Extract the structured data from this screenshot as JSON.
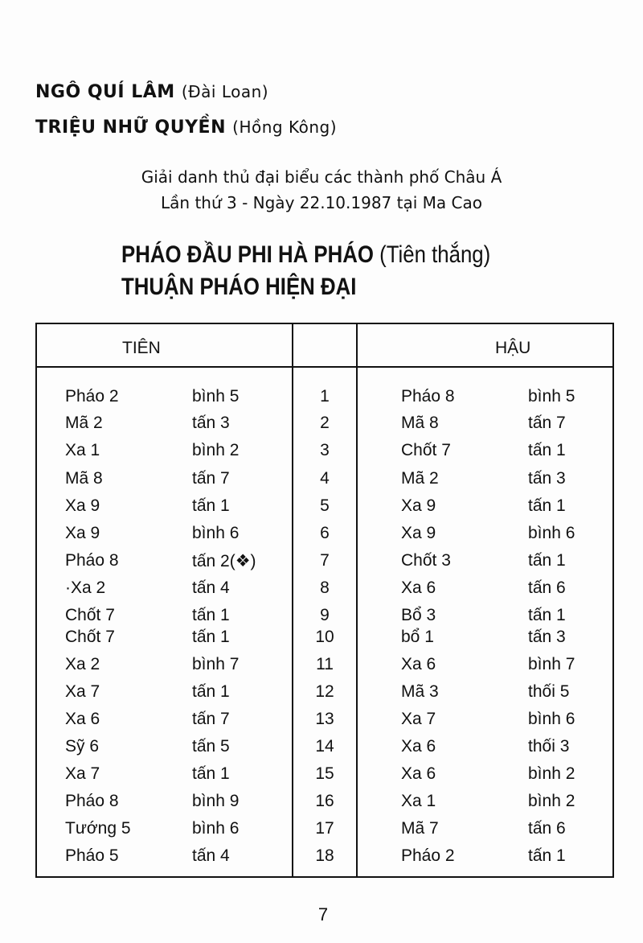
{
  "players": [
    {
      "name": "NGÔ QUÍ LÂM",
      "country": "(Đài Loan)"
    },
    {
      "name": "TRIỆU NHỮ QUYỀN",
      "country": "(Hồng Kông)"
    }
  ],
  "event": {
    "line1": "Giải danh thủ đại biểu các thành phố Châu Á",
    "line2": "Lần thứ 3 - Ngày 22.10.1987 tại Ma Cao"
  },
  "opening": {
    "title1": "PHÁO ĐẦU PHI HÀ PHÁO",
    "result": "(Tiên thắng)",
    "title2": "THUẬN PHÁO HIỆN ĐẠI"
  },
  "table": {
    "headers": {
      "tien": "TIÊN",
      "number": "",
      "hau": "HẬU"
    },
    "rows": [
      {
        "tien_piece": "Pháo 2",
        "tien_move": "bình 5",
        "n": "1",
        "hau_piece": "Pháo 8",
        "hau_move": "bình 5"
      },
      {
        "tien_piece": "Mã 2",
        "tien_move": "tấn 3",
        "n": "2",
        "hau_piece": "Mã 8",
        "hau_move": "tấn 7"
      },
      {
        "tien_piece": "Xa 1",
        "tien_move": "bình 2",
        "n": "3",
        "hau_piece": "Chốt 7",
        "hau_move": "tấn 1"
      },
      {
        "tien_piece": "Mã 8",
        "tien_move": "tấn 7",
        "n": "4",
        "hau_piece": "Mã 2",
        "hau_move": "tấn 3"
      },
      {
        "tien_piece": "Xa 9",
        "tien_move": "tấn 1",
        "n": "5",
        "hau_piece": "Xa 9",
        "hau_move": "tấn 1"
      },
      {
        "tien_piece": "Xa 9",
        "tien_move": "bình 6",
        "n": "6",
        "hau_piece": "Xa 9",
        "hau_move": "bình 6"
      },
      {
        "tien_piece": "Pháo 8",
        "tien_move": "tấn 2(❖)",
        "n": "7",
        "hau_piece": "Chốt 3",
        "hau_move": "tấn 1"
      },
      {
        "tien_piece": "·Xa 2",
        "tien_move": "tấn 4",
        "n": "8",
        "hau_piece": "Xa 6",
        "hau_move": "tấn 6"
      },
      {
        "tien_piece": "Chốt 7",
        "tien_move": "tấn 1",
        "n": "9",
        "hau_piece": "Bổ 3",
        "hau_move": "tấn 1"
      },
      {
        "tien_piece": "Chốt 7",
        "tien_move": "tấn 1",
        "n": "10",
        "hau_piece": "bổ 1",
        "hau_move": "tấn 3"
      },
      {
        "tien_piece": "Xa 2",
        "tien_move": "bình 7",
        "n": "11",
        "hau_piece": "Xa 6",
        "hau_move": "bình 7"
      },
      {
        "tien_piece": "Xa 7",
        "tien_move": "tấn 1",
        "n": "12",
        "hau_piece": "Mã 3",
        "hau_move": "thối 5"
      },
      {
        "tien_piece": "Xa 6",
        "tien_move": "tấn 7",
        "n": "13",
        "hau_piece": "Xa 7",
        "hau_move": "bình 6"
      },
      {
        "tien_piece": "Sỹ 6",
        "tien_move": "tấn 5",
        "n": "14",
        "hau_piece": "Xa 6",
        "hau_move": "thối 3"
      },
      {
        "tien_piece": "Xa 7",
        "tien_move": "tấn 1",
        "n": "15",
        "hau_piece": "Xa 6",
        "hau_move": "bình 2"
      },
      {
        "tien_piece": "Pháo 8",
        "tien_move": "bình 9",
        "n": "16",
        "hau_piece": "Xa 1",
        "hau_move": "bình 2"
      },
      {
        "tien_piece": "Tướng 5",
        "tien_move": "bình 6",
        "n": "17",
        "hau_piece": "Mã 7",
        "hau_move": "tấn 6"
      },
      {
        "tien_piece": "Pháo 5",
        "tien_move": "tấn 4",
        "n": "18",
        "hau_piece": "Pháo 2",
        "hau_move": "tấn 1"
      }
    ]
  },
  "page_number": "7"
}
